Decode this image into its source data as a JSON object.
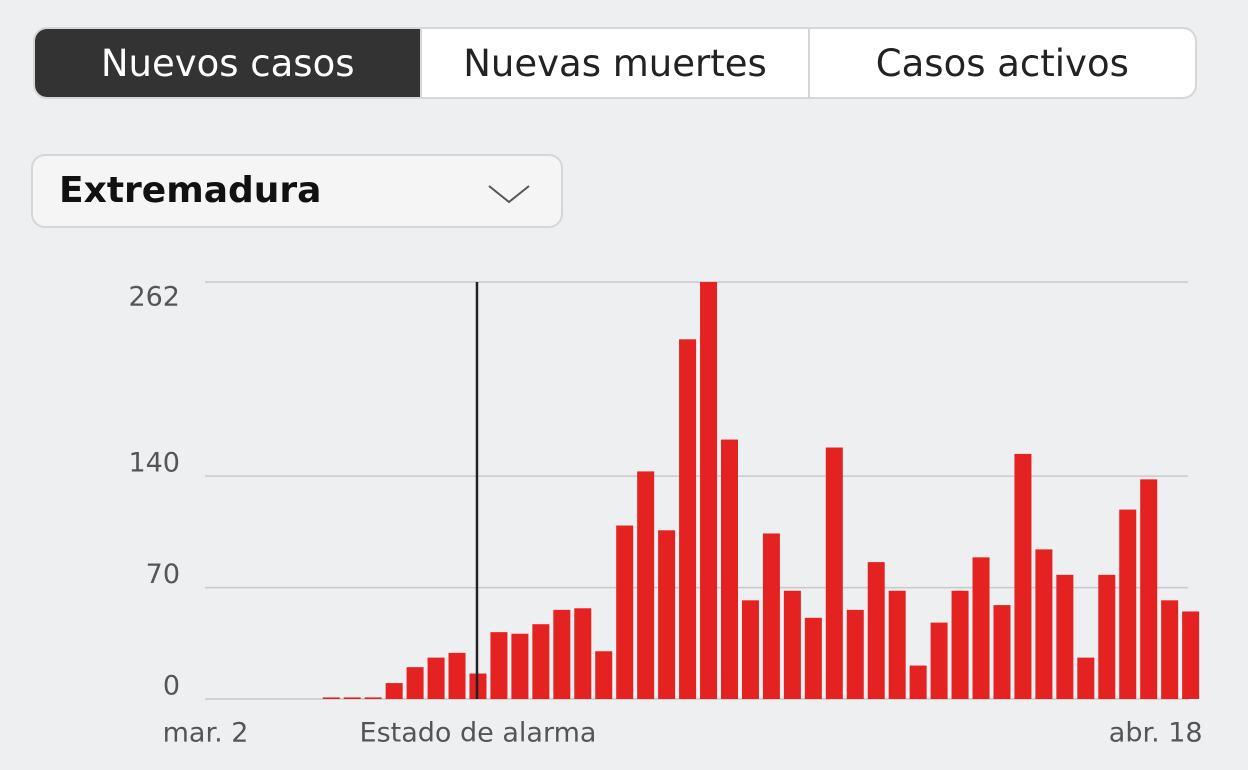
{
  "tabs": [
    "Nuevos casos",
    "Nuevas muertes",
    "Casos activos"
  ],
  "dropdown": "Extremadura",
  "chart_data": {
    "type": "bar",
    "color": "#e42222",
    "categories": [
      "mar. 2",
      null,
      null,
      null,
      null,
      null,
      null,
      null,
      null,
      null,
      null,
      null,
      null,
      "Estado de alarma",
      null,
      null,
      null,
      null,
      null,
      null,
      null,
      null,
      null,
      null,
      null,
      null,
      null,
      null,
      null,
      null,
      null,
      null,
      null,
      null,
      null,
      null,
      null,
      null,
      null,
      null,
      null,
      null,
      null,
      null,
      null,
      null,
      null,
      "abr. 18"
    ],
    "values": [
      0,
      0,
      0,
      0,
      0,
      0,
      1,
      1,
      1,
      10,
      20,
      26,
      29,
      16,
      42,
      41,
      47,
      56,
      57,
      30,
      109,
      143,
      106,
      226,
      262,
      163,
      62,
      104,
      68,
      51,
      158,
      56,
      86,
      68,
      21,
      48,
      68,
      89,
      59,
      154,
      94,
      78,
      26,
      78,
      119,
      138,
      62,
      55
    ],
    "vline_category": "Estado de alarma",
    "ylim": [
      0,
      262
    ],
    "yticks": [
      0,
      70,
      140,
      262
    ],
    "grid": true
  }
}
